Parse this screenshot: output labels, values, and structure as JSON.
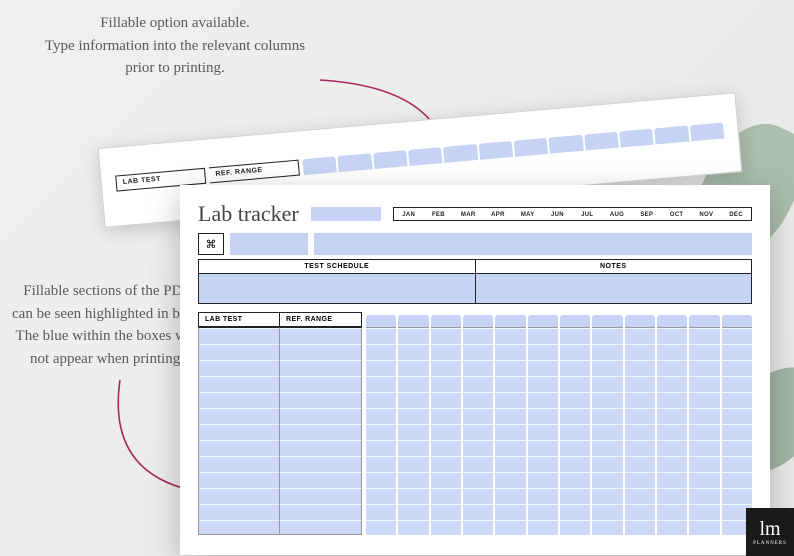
{
  "callouts": {
    "top": "Fillable option available.\nType information into the relevant columns prior to printing.",
    "mid": "Fillable sections of the PDF can be seen highlighted in blue. The blue within the boxes will not appear when printing."
  },
  "back_sheet": {
    "col1_label": "LAB TEST",
    "col2_label": "REF. RANGE"
  },
  "sheet": {
    "title": "Lab tracker",
    "months": [
      "JAN",
      "FEB",
      "MAR",
      "APR",
      "MAY",
      "JUN",
      "JUL",
      "AUG",
      "SEP",
      "OCT",
      "NOV",
      "DEC"
    ],
    "icon_glyph": "⌘",
    "section_left": "TEST SCHEDULE",
    "section_right": "NOTES",
    "data_col1": "LAB TEST",
    "data_col2": "REF. RANGE",
    "tab_count": 12,
    "row_count": 13
  },
  "colors": {
    "fill_blue": "#c7d3f5",
    "grid_blue": "#cdd8f6",
    "arrow": "#a7285f",
    "text": "#5a5a58",
    "border": "#222222"
  },
  "badge": {
    "mono": "lm",
    "sub": "PLANNERS"
  }
}
